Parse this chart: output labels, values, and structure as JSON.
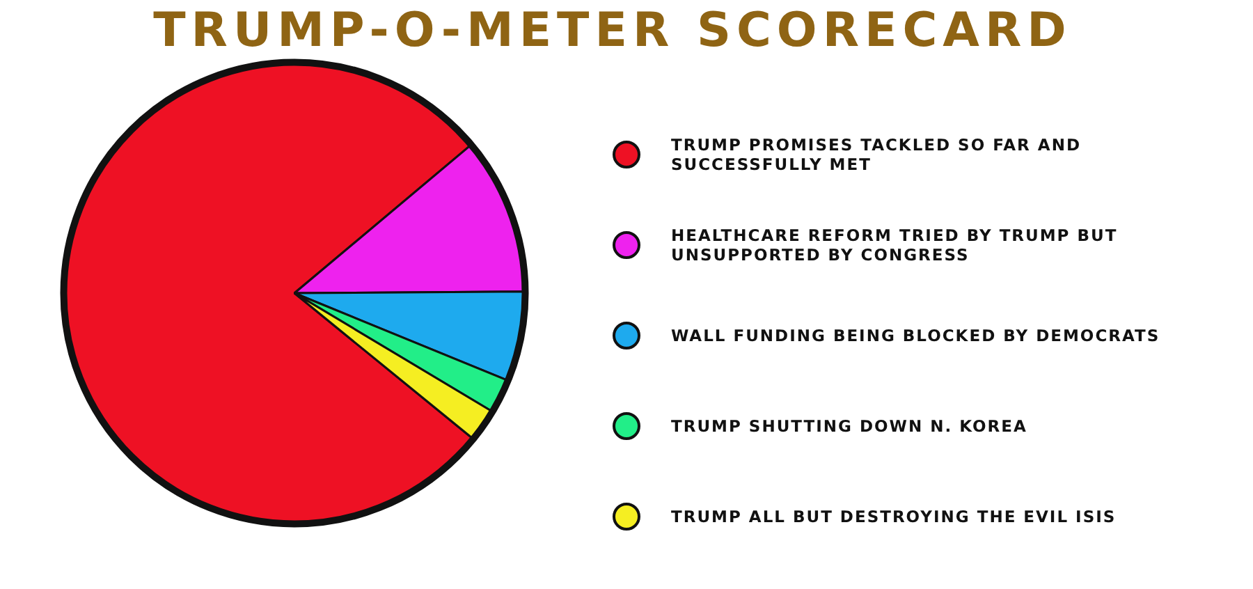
{
  "chart_data": {
    "type": "pie",
    "title": "TRUMP-O-METER SCORECARD",
    "categories": [
      "TRUMP PROMISES TACKLED SO FAR AND SUCCESSFULLY MET",
      "HEALTHCARE REFORM TRIED BY TRUMP BUT UNSUPPORTED BY CONGRESS",
      "WALL FUNDING BEING BLOCKED BY DEMOCRATS",
      "TRUMP SHUTTING DOWN N. KOREA",
      "TRUMP ALL BUT DESTROYING THE EVIL ISIS"
    ],
    "values": [
      78,
      11,
      6.3,
      2.4,
      2.3
    ],
    "colors": [
      "#ee1124",
      "#ee22ee",
      "#1eaaee",
      "#22ee88",
      "#f5ee22"
    ],
    "legend": "right"
  }
}
